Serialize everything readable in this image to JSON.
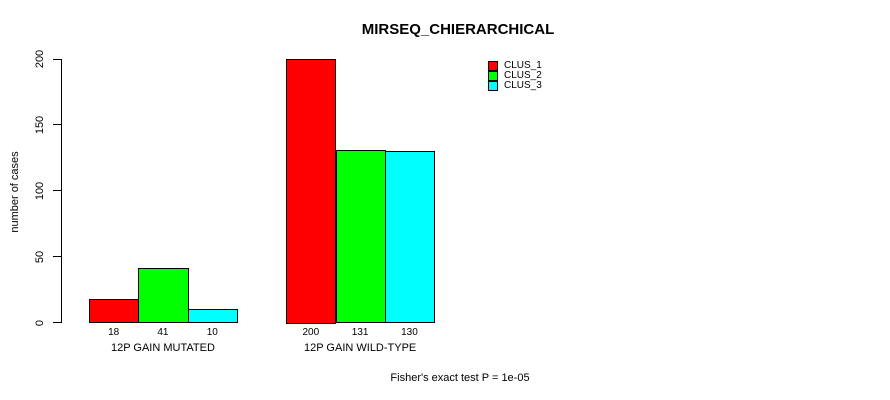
{
  "chart_data": {
    "type": "bar",
    "title": "MIRSEQ_CHIERARCHICAL",
    "ylabel": "number of cases",
    "xlabel": "",
    "categories": [
      "12P GAIN MUTATED",
      "12P GAIN WILD-TYPE"
    ],
    "series": [
      {
        "name": "CLUS_1",
        "color": "#ff0000",
        "values": [
          18,
          200
        ]
      },
      {
        "name": "CLUS_2",
        "color": "#00ff00",
        "values": [
          41,
          131
        ]
      },
      {
        "name": "CLUS_3",
        "color": "#00ffff",
        "values": [
          10,
          130
        ]
      }
    ],
    "bar_value_labels": [
      [
        "18",
        "41",
        "10"
      ],
      [
        "200",
        "131",
        "130"
      ]
    ],
    "yticks": [
      0,
      50,
      100,
      150,
      200
    ],
    "ylim": [
      0,
      200
    ],
    "grid": false,
    "legend_position": "top-right-inside",
    "annotation": "Fisher's exact test P = 1e-05"
  }
}
